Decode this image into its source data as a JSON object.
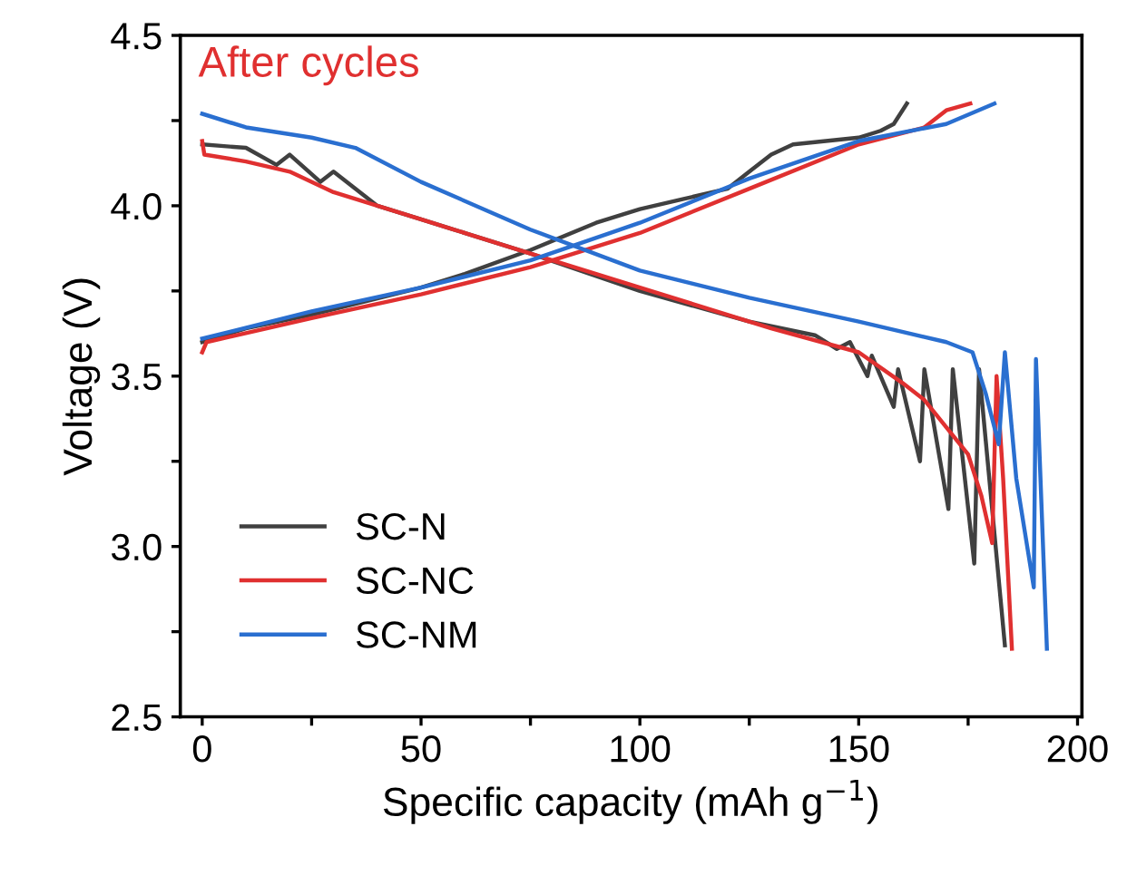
{
  "chart_data": {
    "type": "line",
    "xlabel": "Specific capacity (mAh g$^{−1}$)",
    "ylabel": "Voltage (V)",
    "annotations": [
      "After cycles"
    ],
    "xlim": [
      -5,
      201
    ],
    "ylim": [
      2.5,
      4.5
    ],
    "xticks": [
      0,
      {
        "value": 25,
        "label": null
      },
      50,
      {
        "value": 75,
        "label": null
      },
      100,
      {
        "value": 125,
        "label": null
      },
      150,
      {
        "value": 175,
        "label": null
      },
      200
    ],
    "yticks": [
      2.5,
      {
        "value": 2.75,
        "label": null
      },
      {
        "value": 3,
        "label": "3.0"
      },
      {
        "value": 3.25,
        "label": null
      },
      3.5,
      {
        "value": 3.75,
        "label": null
      },
      {
        "value": 4,
        "label": "4.0"
      },
      {
        "value": 4.25,
        "label": null
      },
      4.5
    ],
    "grid": false,
    "legend": "bottom left",
    "marker": "none",
    "line_style": "solid",
    "series": [
      {
        "name": "SC-N",
        "color": "#404040",
        "x": [
          0,
          10,
          25,
          50,
          60,
          75,
          90,
          100,
          110,
          120,
          125,
          130,
          135,
          150,
          155,
          158,
          161,
          null,
          0,
          10,
          17,
          20,
          27,
          30,
          40,
          50,
          75,
          100,
          125,
          140,
          145,
          148,
          152,
          153,
          158,
          159,
          164,
          165,
          170.5,
          171.5,
          176.4,
          177.5,
          183.4
        ],
        "values": [
          3.6,
          3.64,
          3.68,
          3.76,
          3.8,
          3.87,
          3.95,
          3.99,
          4.02,
          4.05,
          4.1,
          4.15,
          4.18,
          4.2,
          4.22,
          4.24,
          4.3,
          null,
          4.18,
          4.17,
          4.12,
          4.15,
          4.07,
          4.1,
          4.0,
          3.96,
          3.86,
          3.75,
          3.66,
          3.62,
          3.58,
          3.6,
          3.5,
          3.56,
          3.41,
          3.52,
          3.25,
          3.52,
          3.11,
          3.52,
          2.95,
          3.52,
          2.71
        ]
      },
      {
        "name": "SC-NC",
        "color": "#e03030",
        "x": [
          0,
          1,
          25,
          50,
          75,
          100,
          125,
          150,
          165,
          170,
          175.5,
          null,
          0,
          0.5,
          10,
          20,
          30,
          50,
          75,
          100,
          130,
          150,
          160,
          165,
          170,
          175,
          178,
          180.5,
          181.5,
          183,
          185
        ],
        "values": [
          3.57,
          3.6,
          3.67,
          3.74,
          3.82,
          3.92,
          4.05,
          4.18,
          4.23,
          4.28,
          4.3,
          null,
          4.19,
          4.15,
          4.13,
          4.1,
          4.04,
          3.96,
          3.86,
          3.76,
          3.64,
          3.57,
          3.48,
          3.43,
          3.35,
          3.27,
          3.15,
          3.01,
          3.5,
          3.2,
          2.7
        ]
      },
      {
        "name": "SC-NM",
        "color": "#2a6fd0",
        "x": [
          0,
          25,
          50,
          75,
          100,
          125,
          150,
          170,
          181,
          null,
          0,
          10,
          25,
          35,
          50,
          75,
          100,
          125,
          150,
          170,
          176,
          179,
          182,
          183.4,
          186,
          190,
          190.5,
          193
        ],
        "values": [
          3.61,
          3.69,
          3.76,
          3.84,
          3.95,
          4.08,
          4.19,
          4.24,
          4.3,
          null,
          4.27,
          4.23,
          4.2,
          4.17,
          4.07,
          3.93,
          3.81,
          3.73,
          3.66,
          3.6,
          3.57,
          3.45,
          3.3,
          3.57,
          3.2,
          2.88,
          3.55,
          2.7
        ]
      }
    ]
  }
}
